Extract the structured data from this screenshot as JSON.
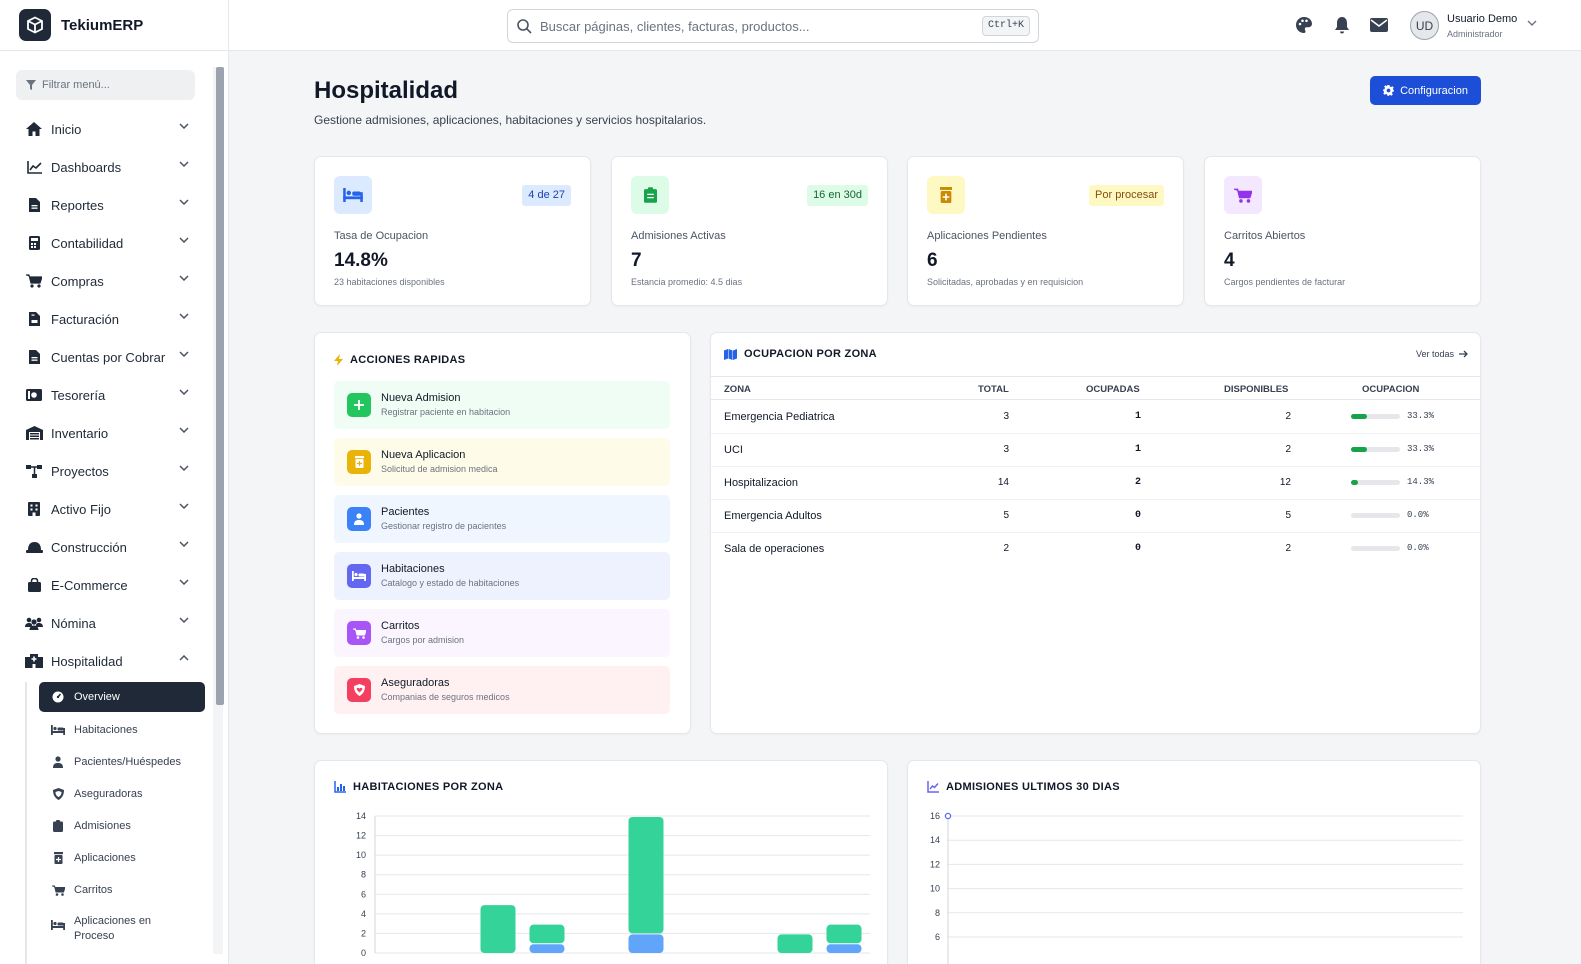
{
  "brand": {
    "name": "TekiumERP"
  },
  "search": {
    "placeholder": "Buscar páginas, clientes, facturas, productos...",
    "shortcut": "Ctrl+K"
  },
  "user": {
    "initials": "UD",
    "name": "Usuario Demo",
    "role": "Administrador"
  },
  "sidebar": {
    "filter_placeholder": "Filtrar menú...",
    "items": [
      {
        "label": "Inicio",
        "icon": "home-icon"
      },
      {
        "label": "Dashboards",
        "icon": "chart-line-icon"
      },
      {
        "label": "Reportes",
        "icon": "file-icon"
      },
      {
        "label": "Contabilidad",
        "icon": "calculator-icon"
      },
      {
        "label": "Compras",
        "icon": "cart-icon"
      },
      {
        "label": "Facturación",
        "icon": "invoice-icon"
      },
      {
        "label": "Cuentas por Cobrar",
        "icon": "file-icon"
      },
      {
        "label": "Tesorería",
        "icon": "money-icon"
      },
      {
        "label": "Inventario",
        "icon": "warehouse-icon"
      },
      {
        "label": "Proyectos",
        "icon": "sitemap-icon"
      },
      {
        "label": "Activo Fijo",
        "icon": "building-icon"
      },
      {
        "label": "Construcción",
        "icon": "helmet-icon"
      },
      {
        "label": "E-Commerce",
        "icon": "bag-icon"
      },
      {
        "label": "Nómina",
        "icon": "users-icon"
      },
      {
        "label": "Hospitalidad",
        "icon": "hospital-icon"
      }
    ],
    "sub_items": [
      {
        "label": "Overview",
        "icon": "gauge-icon"
      },
      {
        "label": "Habitaciones",
        "icon": "bed-icon"
      },
      {
        "label": "Pacientes/Huéspedes",
        "icon": "user-icon"
      },
      {
        "label": "Aseguradoras",
        "icon": "shield-icon"
      },
      {
        "label": "Admisiones",
        "icon": "clipboard-icon"
      },
      {
        "label": "Aplicaciones",
        "icon": "prescription-icon"
      },
      {
        "label": "Carritos",
        "icon": "cart-icon"
      },
      {
        "label": "Aplicaciones en Proceso",
        "icon": "bed-icon"
      }
    ]
  },
  "page": {
    "title": "Hospitalidad",
    "subtitle": "Gestione admisiones, aplicaciones, habitaciones y servicios hospitalarios.",
    "config_button": "Configuracion"
  },
  "stats": [
    {
      "label": "Tasa de Ocupacion",
      "value": "14.8%",
      "sub": "23 habitaciones disponibles",
      "badge": "4 de 27",
      "color": "#2563eb",
      "bg": "#dbeafe",
      "badge_bg": "#dbeafe",
      "badge_fg": "#1e40af"
    },
    {
      "label": "Admisiones Activas",
      "value": "7",
      "sub": "Estancia promedio: 4.5 dias",
      "badge": "16 en 30d",
      "color": "#16a34a",
      "bg": "#dcfce7",
      "badge_bg": "#dcfce7",
      "badge_fg": "#166534"
    },
    {
      "label": "Aplicaciones Pendientes",
      "value": "6",
      "sub": "Solicitadas, aprobadas y en requisicion",
      "badge": "Por procesar",
      "color": "#ca8a04",
      "bg": "#fef9c3",
      "badge_bg": "#fef9c3",
      "badge_fg": "#854d0e"
    },
    {
      "label": "Carritos Abiertos",
      "value": "4",
      "sub": "Cargos pendientes de facturar",
      "badge": "",
      "color": "#9333ea",
      "bg": "#f3e8ff",
      "badge_bg": "",
      "badge_fg": ""
    }
  ],
  "quick_actions": {
    "title": "ACCIONES RAPIDAS",
    "items": [
      {
        "title": "Nueva Admision",
        "sub": "Registrar paciente en habitacion",
        "color": "#22c55e",
        "bg": "#f0fdf4"
      },
      {
        "title": "Nueva Aplicacion",
        "sub": "Solicitud de admision medica",
        "color": "#eab308",
        "bg": "#fefce8"
      },
      {
        "title": "Pacientes",
        "sub": "Gestionar registro de pacientes",
        "color": "#3b82f6",
        "bg": "#eff6ff"
      },
      {
        "title": "Habitaciones",
        "sub": "Catalogo y estado de habitaciones",
        "color": "#6366f1",
        "bg": "#eef2ff"
      },
      {
        "title": "Carritos",
        "sub": "Cargos por admision",
        "color": "#a855f7",
        "bg": "#faf5ff"
      },
      {
        "title": "Aseguradoras",
        "sub": "Companias de seguros medicos",
        "color": "#f43f5e",
        "bg": "#fff1f2"
      }
    ]
  },
  "occupancy": {
    "title": "OCUPACION POR ZONA",
    "link": "Ver todas",
    "columns": [
      "ZONA",
      "TOTAL",
      "OCUPADAS",
      "DISPONIBLES",
      "OCUPACION"
    ],
    "rows": [
      {
        "zona": "Emergencia Pediatrica",
        "total": "3",
        "ocupadas": "1",
        "disponibles": "2",
        "pct": "33.3%",
        "frac": 0.333
      },
      {
        "zona": "UCI",
        "total": "3",
        "ocupadas": "1",
        "disponibles": "2",
        "pct": "33.3%",
        "frac": 0.333
      },
      {
        "zona": "Hospitalizacion",
        "total": "14",
        "ocupadas": "2",
        "disponibles": "12",
        "pct": "14.3%",
        "frac": 0.143
      },
      {
        "zona": "Emergencia Adultos",
        "total": "5",
        "ocupadas": "0",
        "disponibles": "5",
        "pct": "0.0%",
        "frac": 0
      },
      {
        "zona": "Sala de operaciones",
        "total": "2",
        "ocupadas": "0",
        "disponibles": "2",
        "pct": "0.0%",
        "frac": 0
      }
    ]
  },
  "chart_data": [
    {
      "type": "bar",
      "title": "HABITACIONES POR ZONA",
      "stacked": true,
      "ylim": [
        0,
        14
      ],
      "yticks": [
        0,
        2,
        4,
        6,
        8,
        10,
        12,
        14
      ],
      "grid": true,
      "series": [
        {
          "color": "#60a5fa",
          "values": [
            0,
            1,
            2,
            0,
            1
          ]
        },
        {
          "color": "#34d399",
          "values": [
            5,
            2,
            12,
            2,
            2
          ]
        }
      ]
    },
    {
      "type": "line",
      "title": "ADMISIONES ULTIMOS 30 DIAS",
      "ylim": [
        6,
        16
      ],
      "yticks": [
        6,
        8,
        10,
        12,
        14,
        16
      ],
      "grid": true,
      "series": [
        {
          "color": "#6366f1",
          "values": [
            16
          ]
        }
      ]
    }
  ]
}
